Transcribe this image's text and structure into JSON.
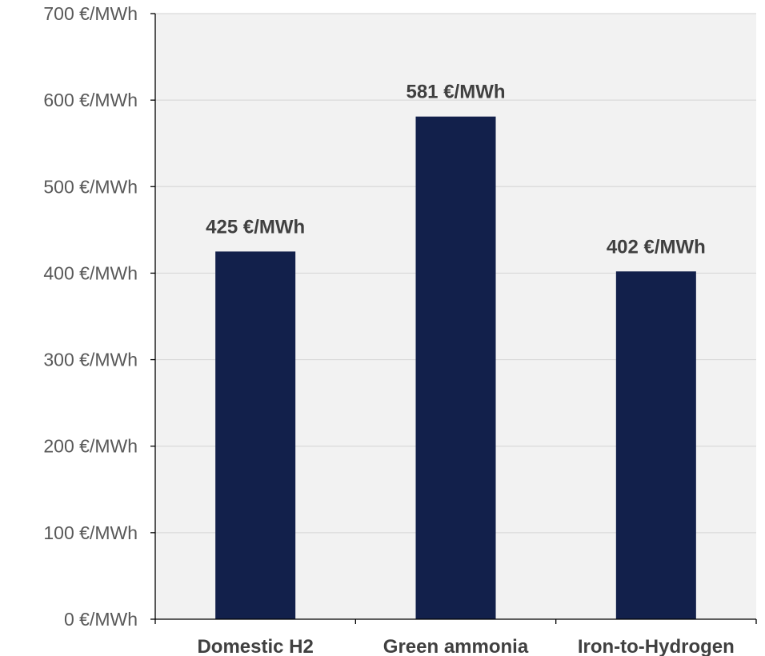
{
  "chart_data": {
    "type": "bar",
    "title": "",
    "xlabel": "",
    "ylabel": "",
    "categories": [
      "Domestic H2",
      "Green ammonia",
      "Iron-to-Hydrogen"
    ],
    "values": [
      425,
      581,
      402
    ],
    "data_labels": [
      "425 €/MWh",
      "581 €/MWh",
      "402 €/MWh"
    ],
    "ylim": [
      0,
      700
    ],
    "y_ticks": [
      0,
      100,
      200,
      300,
      400,
      500,
      600,
      700
    ],
    "y_tick_labels": [
      "0 €/MWh",
      "100 €/MWh",
      "200 €/MWh",
      "300 €/MWh",
      "400 €/MWh",
      "500 €/MWh",
      "600 €/MWh",
      "700 €/MWh"
    ],
    "grid": true,
    "legend": "none",
    "colors": {
      "bar": "#12204b",
      "plot_background": "#f2f2f2",
      "gridline": "#d9d9d9",
      "axis": "#000000"
    }
  }
}
